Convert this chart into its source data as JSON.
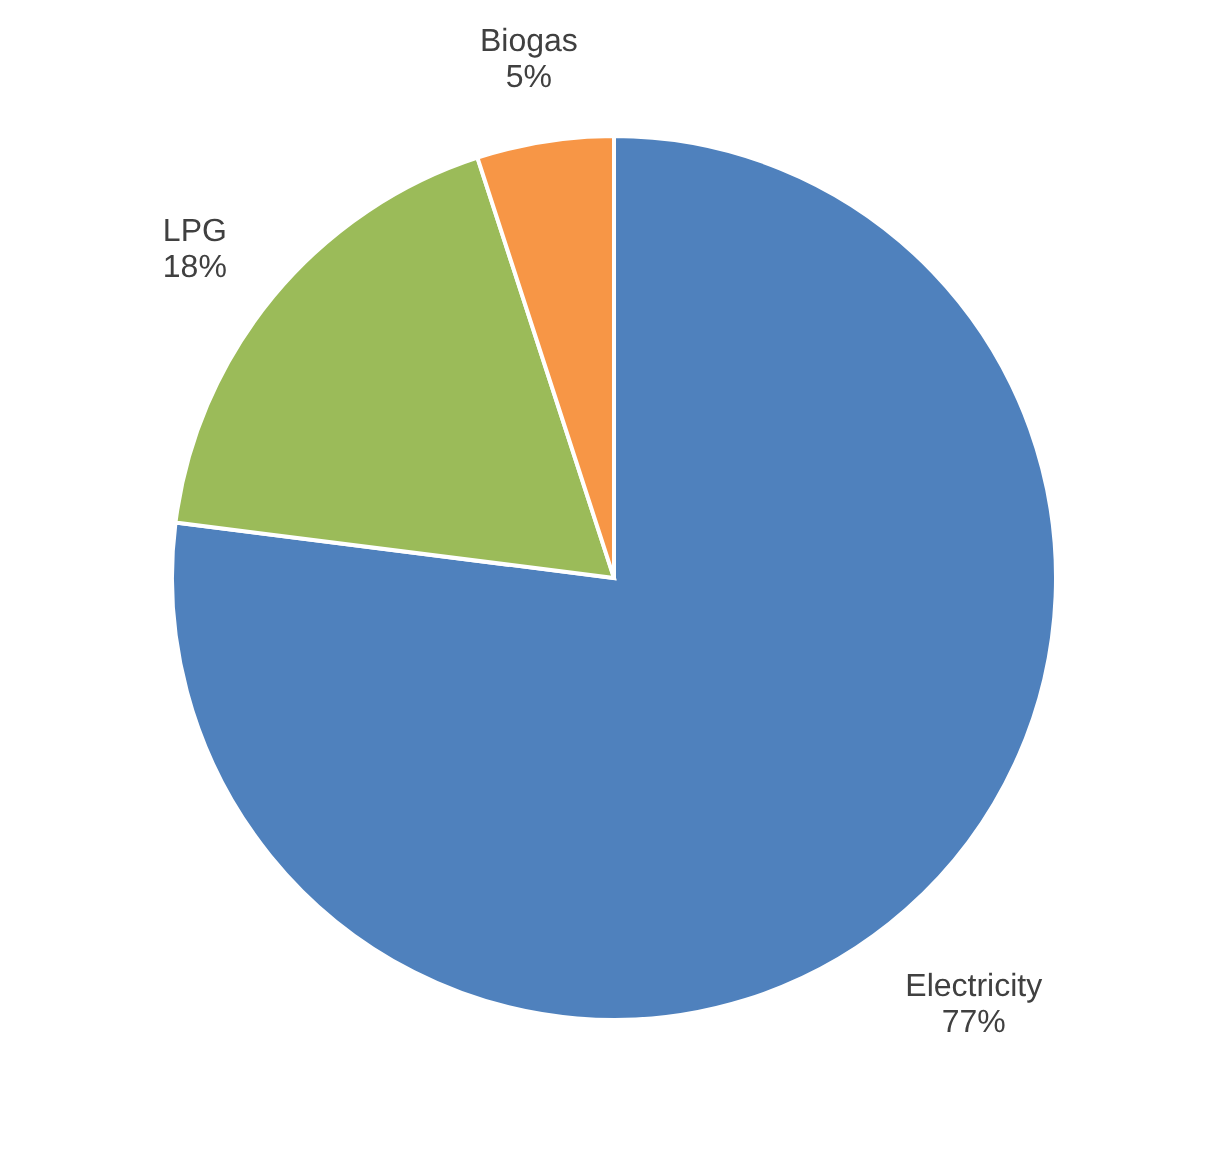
{
  "chart_data": {
    "type": "pie",
    "categories": [
      "Electricity",
      "LPG",
      "Biogas"
    ],
    "values": [
      77,
      18,
      5
    ],
    "value_labels": [
      "77%",
      "18%",
      "5%"
    ],
    "colors": [
      "#4f81bd",
      "#9bbb59",
      "#f79646"
    ],
    "legend": false
  }
}
